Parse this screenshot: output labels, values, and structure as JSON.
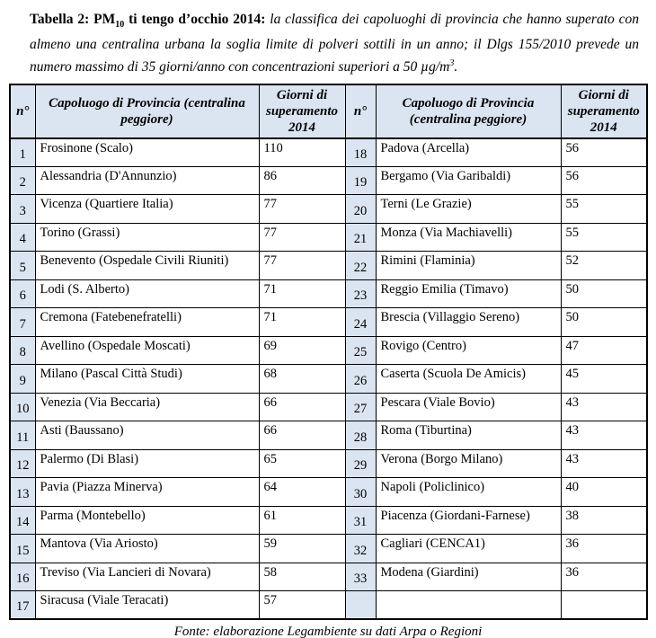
{
  "caption": {
    "bold_pm_prefix": "Tabella 2: PM",
    "pm_subscript": "10",
    "bold_suffix": " ti tengo d’occhio 2014:",
    "italic_text": " la classifica dei capoluoghi di provincia che hanno superato con almeno una centralina urbana la soglia limite di polveri sottili in un anno; il Dlgs 155/2010 prevede un numero massimo di 35 giorni/anno con concentrazioni superiori a 50 µg/m",
    "mu_superscript": "3",
    "period": "."
  },
  "table": {
    "headers": {
      "rank": "n°",
      "city": "Capoluogo di Provincia (centralina peggiore)",
      "days": "Giorni di superamento 2014"
    },
    "left_rows": [
      {
        "n": "1",
        "city": "Frosinone (Scalo)",
        "days": "110"
      },
      {
        "n": "2",
        "city": "Alessandria (D'Annunzio)",
        "days": "86"
      },
      {
        "n": "3",
        "city": "Vicenza (Quartiere Italia)",
        "days": "77"
      },
      {
        "n": "4",
        "city": "Torino (Grassi)",
        "days": "77"
      },
      {
        "n": "5",
        "city": "Benevento (Ospedale Civili Riuniti)",
        "days": "77"
      },
      {
        "n": "6",
        "city": "Lodi (S. Alberto)",
        "days": "71"
      },
      {
        "n": "7",
        "city": "Cremona (Fatebenefratelli)",
        "days": "71"
      },
      {
        "n": "8",
        "city": "Avellino (Ospedale Moscati)",
        "days": "69"
      },
      {
        "n": "9",
        "city": "Milano (Pascal Città Studi)",
        "days": "68"
      },
      {
        "n": "10",
        "city": "Venezia (Via Beccaria)",
        "days": "66"
      },
      {
        "n": "11",
        "city": "Asti (Baussano)",
        "days": "66"
      },
      {
        "n": "12",
        "city": "Palermo (Di Blasi)",
        "days": "65"
      },
      {
        "n": "13",
        "city": "Pavia (Piazza Minerva)",
        "days": "64"
      },
      {
        "n": "14",
        "city": "Parma (Montebello)",
        "days": "61"
      },
      {
        "n": "15",
        "city": "Mantova (Via Ariosto)",
        "days": "59"
      },
      {
        "n": "16",
        "city": "Treviso (Via Lancieri di Novara)",
        "days": "58"
      },
      {
        "n": "17",
        "city": "Siracusa (Viale Teracati)",
        "days": "57"
      }
    ],
    "right_rows": [
      {
        "n": "18",
        "city": "Padova (Arcella)",
        "days": "56"
      },
      {
        "n": "19",
        "city": "Bergamo (Via Garibaldi)",
        "days": "56"
      },
      {
        "n": "20",
        "city": "Terni (Le Grazie)",
        "days": "55"
      },
      {
        "n": "21",
        "city": "Monza (Via Machiavelli)",
        "days": "55"
      },
      {
        "n": "22",
        "city": "Rimini (Flaminia)",
        "days": "52"
      },
      {
        "n": "23",
        "city": "Reggio Emilia (Timavo)",
        "days": "50"
      },
      {
        "n": "24",
        "city": "Brescia (Villaggio Sereno)",
        "days": "50"
      },
      {
        "n": "25",
        "city": "Rovigo (Centro)",
        "days": "47"
      },
      {
        "n": "26",
        "city": "Caserta (Scuola De Amicis)",
        "days": "45"
      },
      {
        "n": "27",
        "city": "Pescara (Viale Bovio)",
        "days": "43"
      },
      {
        "n": "28",
        "city": "Roma (Tiburtina)",
        "days": "43"
      },
      {
        "n": "29",
        "city": "Verona (Borgo Milano)",
        "days": "43"
      },
      {
        "n": "30",
        "city": "Napoli (Policlinico)",
        "days": "40"
      },
      {
        "n": "31",
        "city": "Piacenza (Giordani-Farnese)",
        "days": "38"
      },
      {
        "n": "32",
        "city": "Cagliari (CENCA1)",
        "days": "36"
      },
      {
        "n": "33",
        "city": "Modena (Giardini)",
        "days": "36"
      },
      {
        "n": "",
        "city": "",
        "days": ""
      }
    ]
  },
  "footer": {
    "source": "Fonte: elaborazione Legambiente su dati Arpa o Regioni"
  },
  "colors": {
    "header_fill": "#dbe5f1",
    "border": "#000000",
    "text": "#000000",
    "background": "#ffffff"
  }
}
